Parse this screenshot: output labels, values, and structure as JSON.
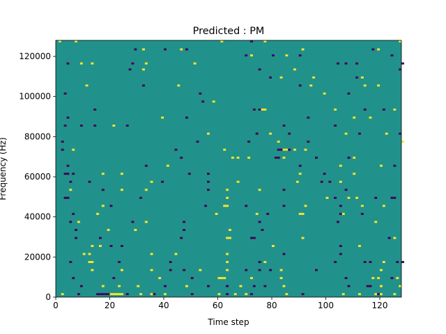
{
  "chart_data": {
    "type": "heatmap",
    "title": "Predicted : PM",
    "xlabel": "Time step",
    "ylabel": "Frequency (Hz)",
    "xlim": [
      0,
      128
    ],
    "ylim": [
      0,
      128000
    ],
    "xticks": [
      0,
      20,
      40,
      60,
      80,
      100,
      120
    ],
    "yticks": [
      0,
      20000,
      40000,
      60000,
      80000,
      100000,
      120000
    ],
    "grid": false,
    "legend": "none",
    "n_time_steps": 128,
    "n_freq_bins": 128,
    "bin_hz": 1000,
    "value_levels": [
      -1,
      0,
      1
    ],
    "colors": {
      "-1": "#440154",
      "0": "#21918c",
      "1": "#fde725"
    },
    "background_value": 0,
    "cells": [
      [
        1,
        127,
        1
      ],
      [
        7,
        127,
        1
      ],
      [
        61,
        127,
        1
      ],
      [
        72,
        127,
        -1
      ],
      [
        77,
        127,
        1
      ],
      [
        127,
        127,
        1
      ],
      [
        29,
        123,
        -1
      ],
      [
        32,
        123,
        1
      ],
      [
        40,
        123,
        -1
      ],
      [
        46,
        123,
        1
      ],
      [
        48,
        123,
        -1
      ],
      [
        91,
        123,
        1
      ],
      [
        117,
        123,
        -1
      ],
      [
        119,
        123,
        1
      ],
      [
        70,
        120,
        -1
      ],
      [
        72,
        120,
        1
      ],
      [
        80,
        120,
        -1
      ],
      [
        85,
        120,
        1
      ],
      [
        90,
        120,
        -1
      ],
      [
        124,
        120,
        -1
      ],
      [
        4,
        116,
        -1
      ],
      [
        9,
        116,
        1
      ],
      [
        13,
        116,
        1
      ],
      [
        28,
        116,
        -1
      ],
      [
        33,
        116,
        1
      ],
      [
        51,
        116,
        1
      ],
      [
        104,
        116,
        -1
      ],
      [
        107,
        116,
        -1
      ],
      [
        111,
        116,
        -1
      ],
      [
        128,
        116,
        -1
      ],
      [
        27,
        113,
        -1
      ],
      [
        32,
        113,
        1
      ],
      [
        75,
        113,
        -1
      ],
      [
        88,
        113,
        1
      ],
      [
        127,
        113,
        -1
      ],
      [
        79,
        109,
        -1
      ],
      [
        83,
        109,
        1
      ],
      [
        95,
        109,
        1
      ],
      [
        111,
        109,
        -1
      ],
      [
        113,
        109,
        1
      ],
      [
        11,
        105,
        1
      ],
      [
        32,
        105,
        -1
      ],
      [
        45,
        105,
        1
      ],
      [
        90,
        105,
        -1
      ],
      [
        94,
        105,
        1
      ],
      [
        114,
        105,
        1
      ],
      [
        119,
        105,
        1
      ],
      [
        3,
        101,
        -1
      ],
      [
        53,
        101,
        -1
      ],
      [
        99,
        101,
        1
      ],
      [
        108,
        101,
        -1
      ],
      [
        54,
        97,
        -1
      ],
      [
        58,
        97,
        1
      ],
      [
        14,
        93,
        -1
      ],
      [
        73,
        93,
        -1
      ],
      [
        75,
        93,
        -1
      ],
      [
        76,
        93,
        1
      ],
      [
        77,
        93,
        1
      ],
      [
        103,
        93,
        1
      ],
      [
        114,
        93,
        -1
      ],
      [
        121,
        93,
        -1
      ],
      [
        125,
        93,
        1
      ],
      [
        4,
        89,
        -1
      ],
      [
        39,
        89,
        1
      ],
      [
        48,
        89,
        -1
      ],
      [
        93,
        89,
        -1
      ],
      [
        110,
        89,
        1
      ],
      [
        116,
        89,
        1
      ],
      [
        3,
        85,
        -1
      ],
      [
        9,
        85,
        -1
      ],
      [
        14,
        85,
        -1
      ],
      [
        21,
        85,
        1
      ],
      [
        26,
        85,
        -1
      ],
      [
        84,
        85,
        -1
      ],
      [
        103,
        85,
        -1
      ],
      [
        56,
        81,
        1
      ],
      [
        74,
        81,
        -1
      ],
      [
        79,
        81,
        1
      ],
      [
        86,
        81,
        -1
      ],
      [
        107,
        81,
        1
      ],
      [
        112,
        81,
        -1
      ],
      [
        122,
        81,
        1
      ],
      [
        127,
        81,
        -1
      ],
      [
        2,
        77,
        -1
      ],
      [
        52,
        77,
        -1
      ],
      [
        71,
        77,
        -1
      ],
      [
        82,
        77,
        1
      ],
      [
        93,
        77,
        -1
      ],
      [
        128,
        77,
        1
      ],
      [
        2,
        73,
        -1
      ],
      [
        6,
        73,
        1
      ],
      [
        44,
        73,
        -1
      ],
      [
        62,
        73,
        1
      ],
      [
        82,
        73,
        -1
      ],
      [
        83,
        73,
        -1
      ],
      [
        84,
        73,
        1
      ],
      [
        85,
        73,
        1
      ],
      [
        86,
        73,
        -1
      ],
      [
        88,
        73,
        1
      ],
      [
        92,
        73,
        1
      ],
      [
        46,
        69,
        -1
      ],
      [
        65,
        69,
        1
      ],
      [
        67,
        69,
        1
      ],
      [
        71,
        69,
        1
      ],
      [
        81,
        69,
        -1
      ],
      [
        82,
        69,
        -1
      ],
      [
        84,
        69,
        1
      ],
      [
        96,
        69,
        -1
      ],
      [
        108,
        69,
        -1
      ],
      [
        110,
        69,
        1
      ],
      [
        4,
        65,
        -1
      ],
      [
        33,
        65,
        -1
      ],
      [
        41,
        65,
        1
      ],
      [
        90,
        65,
        -1
      ],
      [
        105,
        65,
        1
      ],
      [
        120,
        65,
        1
      ],
      [
        125,
        65,
        -1
      ],
      [
        3,
        61,
        -1
      ],
      [
        4,
        61,
        -1
      ],
      [
        6,
        61,
        -1
      ],
      [
        17,
        61,
        1
      ],
      [
        24,
        61,
        1
      ],
      [
        49,
        61,
        -1
      ],
      [
        56,
        61,
        -1
      ],
      [
        90,
        61,
        1
      ],
      [
        99,
        61,
        -1
      ],
      [
        110,
        61,
        1
      ],
      [
        5,
        57,
        -1
      ],
      [
        12,
        57,
        -1
      ],
      [
        35,
        57,
        1
      ],
      [
        39,
        57,
        -1
      ],
      [
        56,
        57,
        -1
      ],
      [
        67,
        57,
        1
      ],
      [
        89,
        57,
        1
      ],
      [
        98,
        57,
        -1
      ],
      [
        101,
        57,
        -1
      ],
      [
        105,
        57,
        1
      ],
      [
        5,
        53,
        1
      ],
      [
        17,
        53,
        -1
      ],
      [
        24,
        53,
        1
      ],
      [
        33,
        53,
        1
      ],
      [
        56,
        53,
        -1
      ],
      [
        63,
        53,
        1
      ],
      [
        75,
        53,
        1
      ],
      [
        84,
        53,
        -1
      ],
      [
        107,
        53,
        -1
      ],
      [
        3,
        49,
        -1
      ],
      [
        4,
        49,
        -1
      ],
      [
        31,
        49,
        -1
      ],
      [
        63,
        49,
        1
      ],
      [
        100,
        49,
        1
      ],
      [
        103,
        49,
        -1
      ],
      [
        108,
        49,
        1
      ],
      [
        111,
        49,
        1
      ],
      [
        118,
        49,
        -1
      ],
      [
        124,
        49,
        -1
      ],
      [
        125,
        49,
        -1
      ],
      [
        17,
        45,
        1
      ],
      [
        20,
        45,
        -1
      ],
      [
        55,
        45,
        -1
      ],
      [
        62,
        45,
        1
      ],
      [
        63,
        45,
        1
      ],
      [
        70,
        45,
        -1
      ],
      [
        84,
        45,
        -1
      ],
      [
        92,
        45,
        1
      ],
      [
        105,
        45,
        -1
      ],
      [
        113,
        45,
        1
      ],
      [
        121,
        45,
        1
      ],
      [
        6,
        41,
        -1
      ],
      [
        15,
        41,
        1
      ],
      [
        59,
        41,
        1
      ],
      [
        74,
        41,
        1
      ],
      [
        78,
        41,
        -1
      ],
      [
        90,
        41,
        1
      ],
      [
        91,
        41,
        1
      ],
      [
        105,
        41,
        -1
      ],
      [
        106,
        41,
        1
      ],
      [
        113,
        41,
        -1
      ],
      [
        5,
        37,
        -1
      ],
      [
        8,
        37,
        1
      ],
      [
        28,
        37,
        -1
      ],
      [
        33,
        37,
        1
      ],
      [
        47,
        37,
        -1
      ],
      [
        75,
        37,
        -1
      ],
      [
        104,
        37,
        -1
      ],
      [
        118,
        37,
        1
      ],
      [
        7,
        33,
        -1
      ],
      [
        19,
        33,
        1
      ],
      [
        29,
        33,
        1
      ],
      [
        47,
        33,
        -1
      ],
      [
        64,
        33,
        1
      ],
      [
        76,
        33,
        -1
      ],
      [
        7,
        29,
        -1
      ],
      [
        16,
        29,
        -1
      ],
      [
        46,
        29,
        -1
      ],
      [
        63,
        29,
        1
      ],
      [
        64,
        29,
        1
      ],
      [
        72,
        29,
        -1
      ],
      [
        73,
        29,
        -1
      ],
      [
        91,
        29,
        1
      ],
      [
        123,
        29,
        -1
      ],
      [
        125,
        29,
        1
      ],
      [
        13,
        25,
        1
      ],
      [
        16,
        25,
        1
      ],
      [
        20,
        25,
        -1
      ],
      [
        24,
        25,
        -1
      ],
      [
        80,
        25,
        1
      ],
      [
        105,
        25,
        -1
      ],
      [
        112,
        25,
        1
      ],
      [
        10,
        21,
        1
      ],
      [
        12,
        21,
        1
      ],
      [
        35,
        21,
        1
      ],
      [
        44,
        21,
        1
      ],
      [
        63,
        21,
        1
      ],
      [
        84,
        21,
        -1
      ],
      [
        105,
        21,
        -1
      ],
      [
        5,
        17,
        -1
      ],
      [
        12,
        17,
        1
      ],
      [
        13,
        17,
        1
      ],
      [
        23,
        17,
        -1
      ],
      [
        42,
        17,
        -1
      ],
      [
        63,
        17,
        1
      ],
      [
        75,
        17,
        -1
      ],
      [
        77,
        17,
        1
      ],
      [
        103,
        17,
        -1
      ],
      [
        114,
        17,
        -1
      ],
      [
        116,
        17,
        -1
      ],
      [
        121,
        17,
        1
      ],
      [
        126,
        17,
        -1
      ],
      [
        128,
        17,
        -1
      ],
      [
        13,
        13,
        1
      ],
      [
        24,
        13,
        1
      ],
      [
        35,
        13,
        1
      ],
      [
        42,
        13,
        -1
      ],
      [
        47,
        13,
        -1
      ],
      [
        53,
        13,
        1
      ],
      [
        63,
        13,
        1
      ],
      [
        70,
        13,
        -1
      ],
      [
        75,
        13,
        -1
      ],
      [
        79,
        13,
        -1
      ],
      [
        83,
        13,
        1
      ],
      [
        96,
        13,
        -1
      ],
      [
        120,
        13,
        1
      ],
      [
        6,
        9,
        -1
      ],
      [
        21,
        9,
        -1
      ],
      [
        38,
        9,
        1
      ],
      [
        50,
        9,
        -1
      ],
      [
        60,
        9,
        1
      ],
      [
        61,
        9,
        1
      ],
      [
        62,
        9,
        1
      ],
      [
        72,
        9,
        1
      ],
      [
        83,
        9,
        1
      ],
      [
        107,
        9,
        -1
      ],
      [
        117,
        9,
        1
      ],
      [
        119,
        9,
        1
      ],
      [
        124,
        9,
        -1
      ],
      [
        126,
        9,
        1
      ],
      [
        9,
        5,
        -1
      ],
      [
        17,
        5,
        1
      ],
      [
        23,
        5,
        1
      ],
      [
        30,
        5,
        1
      ],
      [
        40,
        5,
        -1
      ],
      [
        48,
        5,
        1
      ],
      [
        56,
        5,
        -1
      ],
      [
        63,
        5,
        -1
      ],
      [
        68,
        5,
        1
      ],
      [
        73,
        5,
        -1
      ],
      [
        77,
        5,
        -1
      ],
      [
        84,
        5,
        1
      ],
      [
        108,
        5,
        -1
      ],
      [
        115,
        5,
        -1
      ],
      [
        116,
        5,
        -1
      ],
      [
        120,
        5,
        1
      ],
      [
        127,
        5,
        1
      ],
      [
        2,
        1,
        1
      ],
      [
        8,
        1,
        -1
      ],
      [
        15,
        1,
        -1
      ],
      [
        16,
        1,
        -1
      ],
      [
        17,
        1,
        -1
      ],
      [
        18,
        1,
        -1
      ],
      [
        19,
        1,
        -1
      ],
      [
        20,
        1,
        1
      ],
      [
        21,
        1,
        1
      ],
      [
        22,
        1,
        1
      ],
      [
        23,
        1,
        1
      ],
      [
        24,
        1,
        1
      ],
      [
        26,
        1,
        -1
      ],
      [
        31,
        1,
        1
      ],
      [
        35,
        1,
        1
      ],
      [
        36,
        1,
        -1
      ],
      [
        40,
        1,
        1
      ],
      [
        50,
        1,
        -1
      ],
      [
        60,
        1,
        1
      ],
      [
        63,
        1,
        -1
      ],
      [
        66,
        1,
        1
      ],
      [
        70,
        1,
        1
      ],
      [
        72,
        1,
        -1
      ],
      [
        85,
        1,
        1
      ],
      [
        91,
        1,
        -1
      ],
      [
        106,
        1,
        1
      ],
      [
        112,
        1,
        1
      ],
      [
        118,
        1,
        1
      ],
      [
        119,
        1,
        -1
      ],
      [
        120,
        1,
        1
      ],
      [
        125,
        1,
        1
      ]
    ]
  }
}
